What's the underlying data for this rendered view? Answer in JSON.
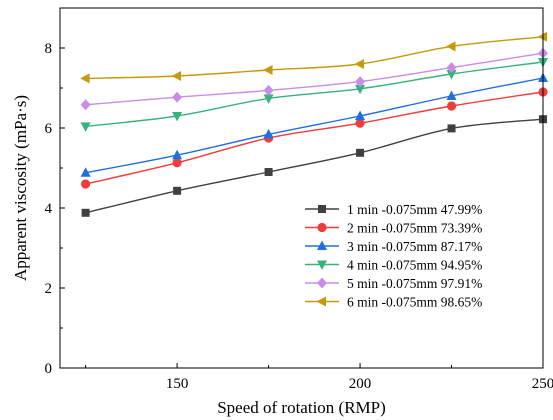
{
  "chart_data": {
    "type": "line",
    "xlabel": "Speed of rotation (RMP)",
    "ylabel": "Apparent viscosity (mPa·s)",
    "xlim": [
      118,
      250
    ],
    "ylim": [
      0,
      9
    ],
    "xticks": [
      150,
      200,
      250
    ],
    "yticks": [
      0,
      2,
      4,
      6,
      8
    ],
    "x": [
      125,
      150,
      175,
      200,
      225,
      250
    ],
    "legend_position": "bottom-right",
    "grid": false,
    "series": [
      {
        "name": "1 min -0.075mm 47.99%",
        "color": "#404040",
        "marker": "square",
        "values": [
          3.88,
          4.43,
          4.9,
          5.38,
          5.99,
          6.22
        ]
      },
      {
        "name": "2 min -0.075mm 73.39%",
        "color": "#f03c3c",
        "marker": "circle",
        "values": [
          4.6,
          5.13,
          5.75,
          6.12,
          6.55,
          6.9
        ]
      },
      {
        "name": "3 min -0.075mm 87.17%",
        "color": "#1f6fe0",
        "marker": "triangle-up",
        "values": [
          4.88,
          5.32,
          5.84,
          6.3,
          6.8,
          7.25
        ]
      },
      {
        "name": "4 min -0.075mm 94.95%",
        "color": "#36b27e",
        "marker": "triangle-down",
        "values": [
          6.04,
          6.3,
          6.74,
          6.98,
          7.35,
          7.65
        ]
      },
      {
        "name": "5 min -0.075mm 97.91%",
        "color": "#c88de8",
        "marker": "diamond",
        "values": [
          6.58,
          6.77,
          6.94,
          7.16,
          7.51,
          7.87
        ]
      },
      {
        "name": "6 min -0.075mm 98.65%",
        "color": "#c59a0c",
        "marker": "triangle-left",
        "values": [
          7.24,
          7.3,
          7.45,
          7.6,
          8.04,
          8.28
        ]
      }
    ]
  }
}
